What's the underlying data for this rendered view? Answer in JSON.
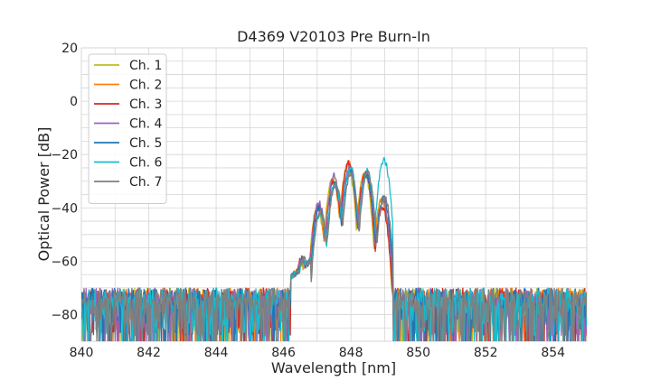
{
  "chart_data": {
    "type": "line",
    "title": "D4369 V20103 Pre Burn-In",
    "xlabel": "Wavelength [nm]",
    "ylabel": "Optical Power [dB]",
    "xlim": [
      840,
      855
    ],
    "ylim": [
      -90,
      20
    ],
    "xticks": [
      840,
      842,
      844,
      846,
      848,
      850,
      852,
      854
    ],
    "xtick_labels": [
      "840",
      "842",
      "844",
      "846",
      "848",
      "850",
      "852",
      "854"
    ],
    "yticks": [
      -80,
      -60,
      -40,
      -20,
      0,
      20
    ],
    "ytick_labels": [
      "−80",
      "−60",
      "−40",
      "−20",
      "0",
      "20"
    ],
    "grid": true,
    "legend_position": "top-left",
    "noise_floor_db": -72,
    "noise_min_db": -90,
    "series": [
      {
        "name": "Ch. 1",
        "color": "#bcbd22",
        "peaks": [
          [
            846.55,
            -60
          ],
          [
            847.05,
            -40
          ],
          [
            847.5,
            -29
          ],
          [
            847.95,
            -24
          ],
          [
            848.45,
            -27
          ],
          [
            848.95,
            -37
          ]
        ]
      },
      {
        "name": "Ch. 2",
        "color": "#ff7f0e",
        "peaks": [
          [
            846.55,
            -60
          ],
          [
            847.05,
            -40
          ],
          [
            847.5,
            -30
          ],
          [
            847.95,
            -23
          ],
          [
            848.45,
            -26
          ],
          [
            848.95,
            -37
          ]
        ]
      },
      {
        "name": "Ch. 3",
        "color": "#d62728",
        "peaks": [
          [
            846.55,
            -59
          ],
          [
            847.05,
            -39
          ],
          [
            847.5,
            -30
          ],
          [
            847.95,
            -23
          ],
          [
            848.45,
            -27
          ],
          [
            848.95,
            -40
          ]
        ]
      },
      {
        "name": "Ch. 4",
        "color": "#9467bd",
        "peaks": [
          [
            846.55,
            -59
          ],
          [
            847.05,
            -38
          ],
          [
            847.5,
            -28
          ],
          [
            847.95,
            -25
          ],
          [
            848.45,
            -27
          ],
          [
            848.95,
            -38
          ]
        ]
      },
      {
        "name": "Ch. 5",
        "color": "#1f77b4",
        "peaks": [
          [
            846.55,
            -59
          ],
          [
            847.05,
            -40
          ],
          [
            847.5,
            -31
          ],
          [
            847.95,
            -26
          ],
          [
            848.45,
            -28
          ],
          [
            848.95,
            -36
          ]
        ]
      },
      {
        "name": "Ch. 6",
        "color": "#17becf",
        "peaks": [
          [
            846.55,
            -60
          ],
          [
            847.05,
            -42
          ],
          [
            847.5,
            -31
          ],
          [
            847.95,
            -25
          ],
          [
            848.45,
            -26
          ],
          [
            848.95,
            -22
          ]
        ]
      },
      {
        "name": "Ch. 7",
        "color": "#7f7f7f",
        "peaks": [
          [
            846.55,
            -59
          ],
          [
            847.05,
            -41
          ],
          [
            847.5,
            -31
          ],
          [
            847.95,
            -27
          ],
          [
            848.45,
            -27
          ],
          [
            848.95,
            -36
          ]
        ]
      }
    ]
  }
}
